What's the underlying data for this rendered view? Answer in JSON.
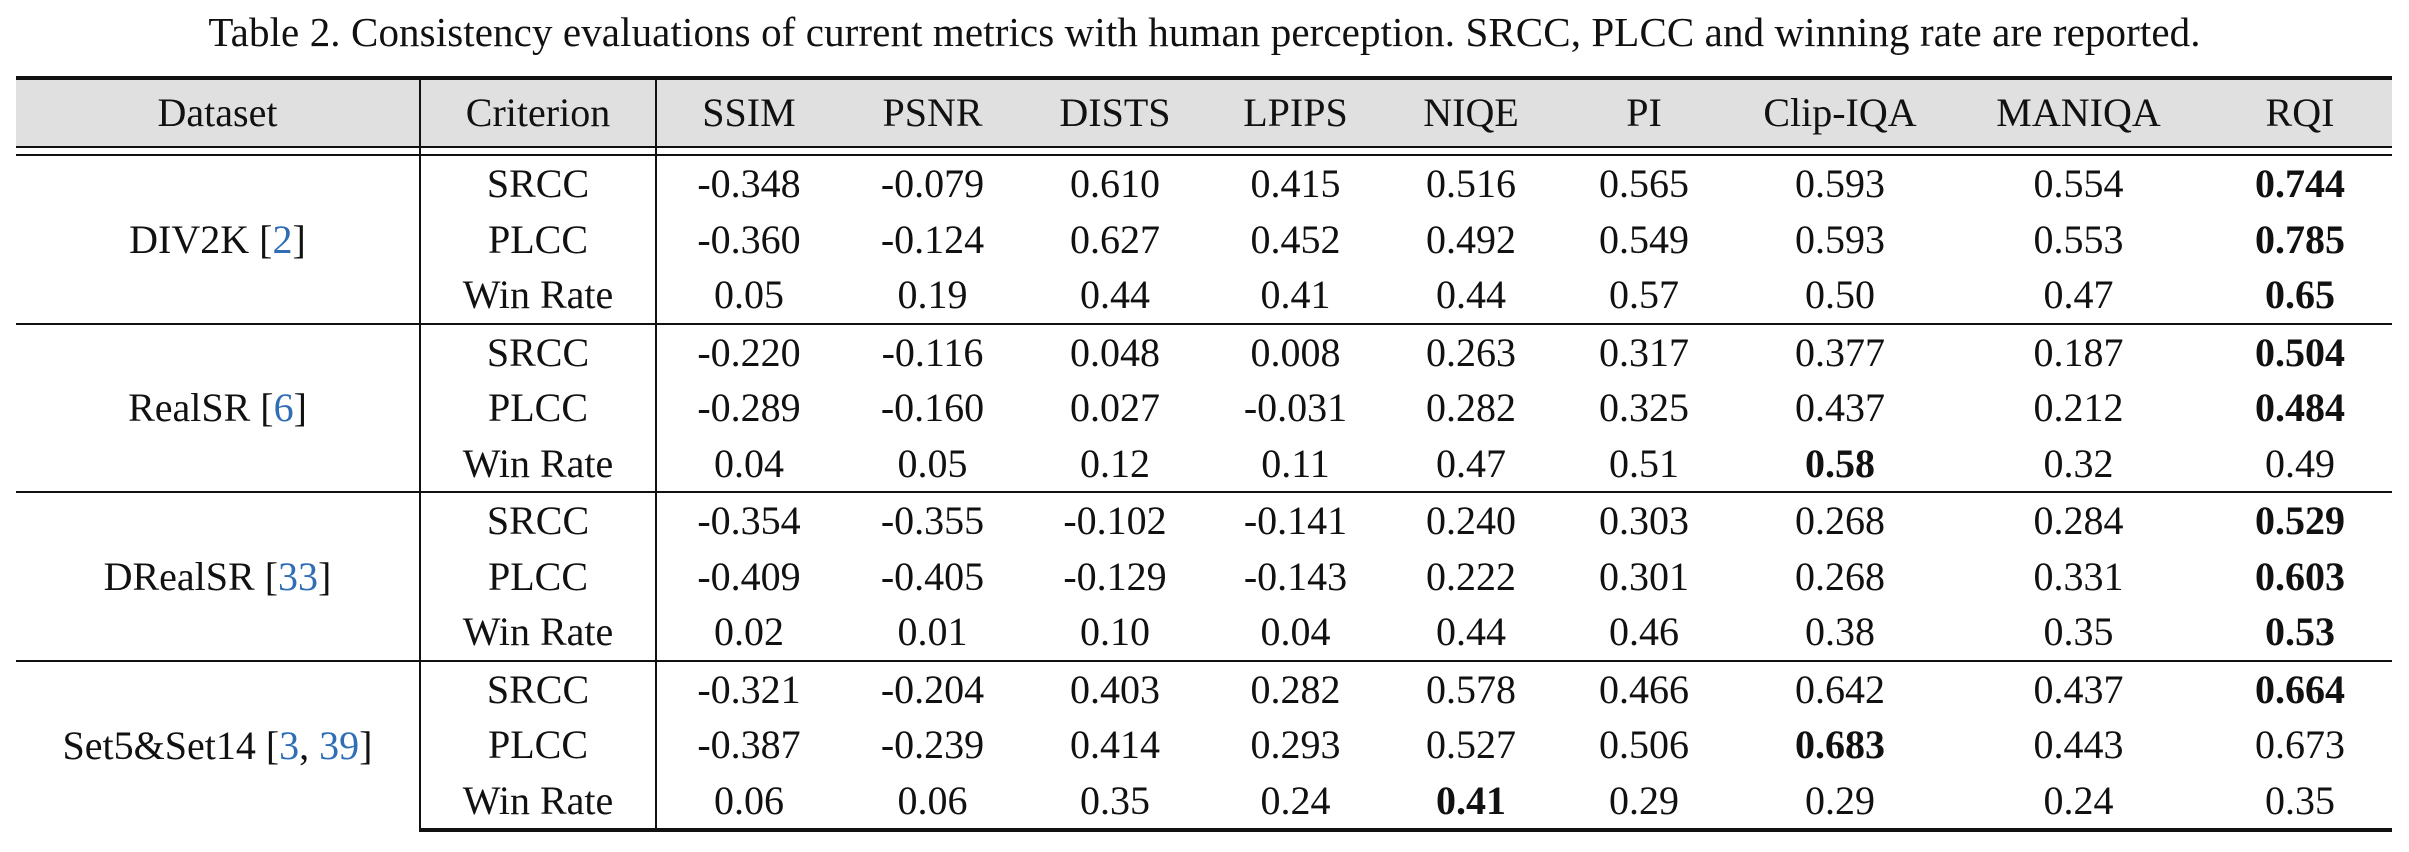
{
  "caption": "Table 2. Consistency evaluations of current metrics with human perception. SRCC, PLCC and winning rate are reported.",
  "headers": {
    "dataset": "Dataset",
    "criterion": "Criterion",
    "metrics": [
      "SSIM",
      "PSNR",
      "DISTS",
      "LPIPS",
      "NIQE",
      "PI",
      "Clip-IQA",
      "MANIQA",
      "RQI"
    ]
  },
  "groups": [
    {
      "dataset": "DIV2K [",
      "cites": [
        "2"
      ],
      "dataset_suffix": "]",
      "rows": [
        {
          "criterion": "SRCC",
          "values": [
            "-0.348",
            "-0.079",
            "0.610",
            "0.415",
            "0.516",
            "0.565",
            "0.593",
            "0.554",
            "0.744"
          ],
          "best": [
            8
          ]
        },
        {
          "criterion": "PLCC",
          "values": [
            "-0.360",
            "-0.124",
            "0.627",
            "0.452",
            "0.492",
            "0.549",
            "0.593",
            "0.553",
            "0.785"
          ],
          "best": [
            8
          ]
        },
        {
          "criterion": "Win Rate",
          "values": [
            "0.05",
            "0.19",
            "0.44",
            "0.41",
            "0.44",
            "0.57",
            "0.50",
            "0.47",
            "0.65"
          ],
          "best": [
            8
          ]
        }
      ]
    },
    {
      "dataset": "RealSR [",
      "cites": [
        "6"
      ],
      "dataset_suffix": "]",
      "rows": [
        {
          "criterion": "SRCC",
          "values": [
            "-0.220",
            "-0.116",
            "0.048",
            "0.008",
            "0.263",
            "0.317",
            "0.377",
            "0.187",
            "0.504"
          ],
          "best": [
            8
          ]
        },
        {
          "criterion": "PLCC",
          "values": [
            "-0.289",
            "-0.160",
            "0.027",
            "-0.031",
            "0.282",
            "0.325",
            "0.437",
            "0.212",
            "0.484"
          ],
          "best": [
            8
          ]
        },
        {
          "criterion": "Win Rate",
          "values": [
            "0.04",
            "0.05",
            "0.12",
            "0.11",
            "0.47",
            "0.51",
            "0.58",
            "0.32",
            "0.49"
          ],
          "best": [
            6
          ]
        }
      ]
    },
    {
      "dataset": "DRealSR [",
      "cites": [
        "33"
      ],
      "dataset_suffix": "]",
      "rows": [
        {
          "criterion": "SRCC",
          "values": [
            "-0.354",
            "-0.355",
            "-0.102",
            "-0.141",
            "0.240",
            "0.303",
            "0.268",
            "0.284",
            "0.529"
          ],
          "best": [
            8
          ]
        },
        {
          "criterion": "PLCC",
          "values": [
            "-0.409",
            "-0.405",
            "-0.129",
            "-0.143",
            "0.222",
            "0.301",
            "0.268",
            "0.331",
            "0.603"
          ],
          "best": [
            8
          ]
        },
        {
          "criterion": "Win Rate",
          "values": [
            "0.02",
            "0.01",
            "0.10",
            "0.04",
            "0.44",
            "0.46",
            "0.38",
            "0.35",
            "0.53"
          ],
          "best": [
            8
          ]
        }
      ]
    },
    {
      "dataset": "Set5&Set14 [",
      "cites": [
        "3",
        "39"
      ],
      "dataset_suffix": "]",
      "rows": [
        {
          "criterion": "SRCC",
          "values": [
            "-0.321",
            "-0.204",
            "0.403",
            "0.282",
            "0.578",
            "0.466",
            "0.642",
            "0.437",
            "0.664"
          ],
          "best": [
            8
          ]
        },
        {
          "criterion": "PLCC",
          "values": [
            "-0.387",
            "-0.239",
            "0.414",
            "0.293",
            "0.527",
            "0.506",
            "0.683",
            "0.443",
            "0.673"
          ],
          "best": [
            6
          ]
        },
        {
          "criterion": "Win Rate",
          "values": [
            "0.06",
            "0.06",
            "0.35",
            "0.24",
            "0.41",
            "0.29",
            "0.29",
            "0.24",
            "0.35"
          ],
          "best": [
            4
          ]
        }
      ]
    }
  ]
}
